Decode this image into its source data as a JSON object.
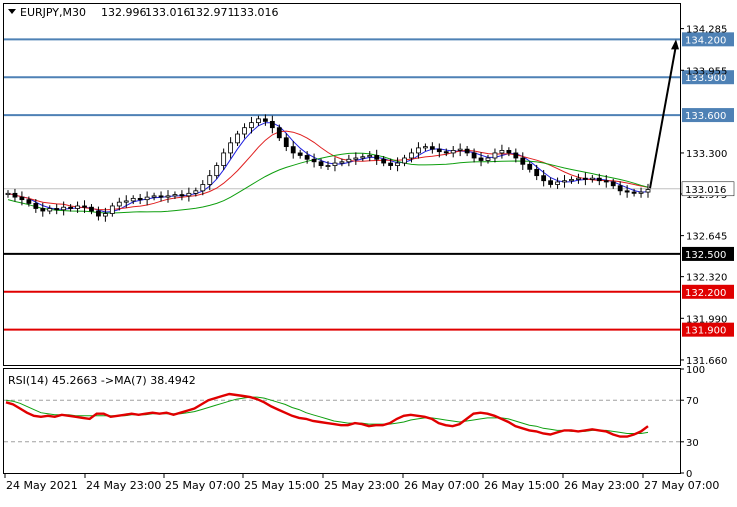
{
  "chart_data": [
    {
      "type": "candlestick",
      "symbol_header": "EURJPY,M30",
      "ohlc_header": {
        "open": "132.996",
        "high": "133.016",
        "low": "132.971",
        "close": "133.016"
      },
      "price_ticks": [
        "134.285",
        "133.955",
        "133.300",
        "132.975",
        "132.645",
        "132.320",
        "131.990",
        "131.660"
      ],
      "ylim": [
        131.62,
        134.48
      ],
      "horizontal_levels": [
        {
          "value": 134.2,
          "label": "134.200",
          "color": "#4e81b5"
        },
        {
          "value": 133.9,
          "label": "133.900",
          "color": "#4e81b5"
        },
        {
          "value": 133.6,
          "label": "133.600",
          "color": "#4e81b5"
        },
        {
          "value": 132.5,
          "label": "132.500",
          "color": "#000000"
        },
        {
          "value": 132.2,
          "label": "132.200",
          "color": "#e00000"
        },
        {
          "value": 131.9,
          "label": "131.900",
          "color": "#e00000"
        }
      ],
      "current_price": {
        "value": 133.016,
        "label": "133.016"
      },
      "forecast_arrow": {
        "from": 133.02,
        "to": 134.2
      },
      "time_labels": [
        "24 May 2021",
        "24 May 23:00",
        "25 May 07:00",
        "25 May 15:00",
        "25 May 23:00",
        "26 May 07:00",
        "26 May 15:00",
        "26 May 23:00",
        "27 May 07:00"
      ],
      "series_ma_fast": {
        "color": "#1f1fe0"
      },
      "series_ma_mid": {
        "color": "#e02020"
      },
      "series_ma_slow": {
        "color": "#0f9f0f"
      },
      "close_series": [
        132.98,
        132.95,
        132.93,
        132.9,
        132.86,
        132.84,
        132.86,
        132.85,
        132.87,
        132.86,
        132.88,
        132.87,
        132.84,
        132.8,
        132.82,
        132.88,
        132.91,
        132.92,
        132.94,
        132.93,
        132.95,
        132.96,
        132.95,
        132.96,
        132.97,
        132.96,
        132.98,
        133.0,
        133.05,
        133.12,
        133.2,
        133.3,
        133.38,
        133.45,
        133.5,
        133.54,
        133.57,
        133.55,
        133.5,
        133.42,
        133.35,
        133.3,
        133.28,
        133.25,
        133.23,
        133.2,
        133.2,
        133.22,
        133.23,
        133.25,
        133.26,
        133.27,
        133.28,
        133.25,
        133.22,
        133.2,
        133.22,
        133.26,
        133.3,
        133.34,
        133.35,
        133.33,
        133.31,
        133.3,
        133.32,
        133.33,
        133.3,
        133.26,
        133.24,
        133.26,
        133.3,
        133.32,
        133.3,
        133.26,
        133.21,
        133.17,
        133.12,
        133.08,
        133.05,
        133.07,
        133.08,
        133.09,
        133.1,
        133.09,
        133.1,
        133.08,
        133.07,
        133.04,
        133.0,
        132.99,
        132.98,
        132.99,
        133.01
      ]
    },
    {
      "type": "line",
      "indicator_header": "RSI(14) 45.2663  ->MA(7) 38.4942",
      "ylim": [
        0,
        100
      ],
      "y_ticks": [
        "100",
        "70",
        "30",
        "0"
      ],
      "levels": [
        70,
        30
      ],
      "rsi_color": "#e00000",
      "ma_color": "#0f9f0f",
      "rsi_values": [
        68,
        66,
        62,
        58,
        55,
        54,
        55,
        54,
        56,
        55,
        54,
        53,
        52,
        57,
        57,
        54,
        55,
        56,
        57,
        56,
        57,
        58,
        57,
        58,
        56,
        58,
        60,
        62,
        66,
        70,
        72,
        74,
        76,
        75,
        74,
        73,
        71,
        68,
        64,
        61,
        58,
        55,
        53,
        52,
        50,
        49,
        48,
        47,
        46,
        46,
        48,
        47,
        45,
        46,
        46,
        48,
        52,
        55,
        56,
        55,
        54,
        52,
        48,
        46,
        45,
        47,
        52,
        57,
        58,
        57,
        55,
        52,
        49,
        45,
        43,
        41,
        40,
        38,
        37,
        39,
        41,
        41,
        40,
        41,
        42,
        41,
        40,
        37,
        35,
        35,
        37,
        40,
        45
      ],
      "ma_values": [
        70,
        69,
        67,
        64,
        61,
        58,
        57,
        56,
        56,
        56,
        55,
        55,
        55,
        55,
        55,
        55,
        55,
        55,
        56,
        56,
        56,
        57,
        57,
        57,
        57,
        57,
        58,
        59,
        61,
        63,
        65,
        67,
        69,
        71,
        72,
        73,
        73,
        72,
        70,
        68,
        66,
        63,
        61,
        58,
        56,
        54,
        52,
        50,
        49,
        48,
        48,
        48,
        47,
        47,
        47,
        47,
        48,
        49,
        51,
        52,
        53,
        53,
        52,
        51,
        50,
        49,
        50,
        51,
        52,
        53,
        53,
        53,
        52,
        50,
        48,
        46,
        45,
        43,
        42,
        41,
        41,
        40,
        40,
        40,
        41,
        41,
        41,
        40,
        39,
        38,
        38,
        38,
        39
      ]
    }
  ]
}
